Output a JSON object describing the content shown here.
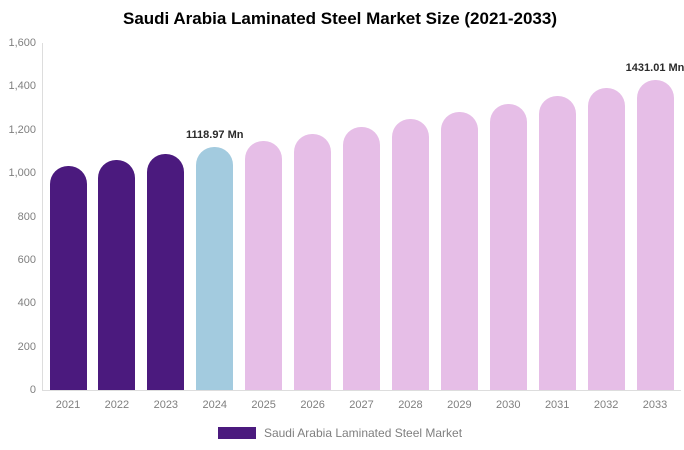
{
  "title": "Saudi Arabia Laminated Steel Market Size (2021-2033)",
  "legend": {
    "label": "Saudi Arabia Laminated Steel Market",
    "swatch_color": "#4b1a7e"
  },
  "colors": {
    "historical": "#4b1a7e",
    "current": "#a3cbdf",
    "forecast": "#e6bee7",
    "axis_line": "#dddddd",
    "tick_text": "#7f7f7f",
    "annotation_text": "#2b2b2b",
    "title_text": "#000000",
    "background": "#ffffff"
  },
  "chart_data": {
    "type": "bar",
    "title": "Saudi Arabia Laminated Steel Market Size (2021-2033)",
    "unit": "Mn",
    "categories": [
      "2021",
      "2022",
      "2023",
      "2024",
      "2025",
      "2026",
      "2027",
      "2028",
      "2029",
      "2030",
      "2031",
      "2032",
      "2033"
    ],
    "values": [
      1031,
      1060,
      1089,
      1118.97,
      1150,
      1182,
      1214,
      1248,
      1283,
      1318,
      1355,
      1392,
      1431.01
    ],
    "color_keys": [
      "historical",
      "historical",
      "historical",
      "current",
      "forecast",
      "forecast",
      "forecast",
      "forecast",
      "forecast",
      "forecast",
      "forecast",
      "forecast",
      "forecast"
    ],
    "annotations": [
      {
        "category": "2024",
        "text": "1118.97 Mn"
      },
      {
        "category": "2033",
        "text": "1431.01 Mn"
      }
    ],
    "xlabel": "",
    "ylabel": "",
    "ylim": [
      0,
      1600
    ],
    "y_tick_step": 200,
    "y_ticks": [
      "0",
      "200",
      "400",
      "600",
      "800",
      "1,000",
      "1,200",
      "1,400",
      "1,600"
    ],
    "grid": false,
    "legend_position": "bottom",
    "legend_entries": [
      "Saudi Arabia Laminated Steel Market"
    ]
  }
}
